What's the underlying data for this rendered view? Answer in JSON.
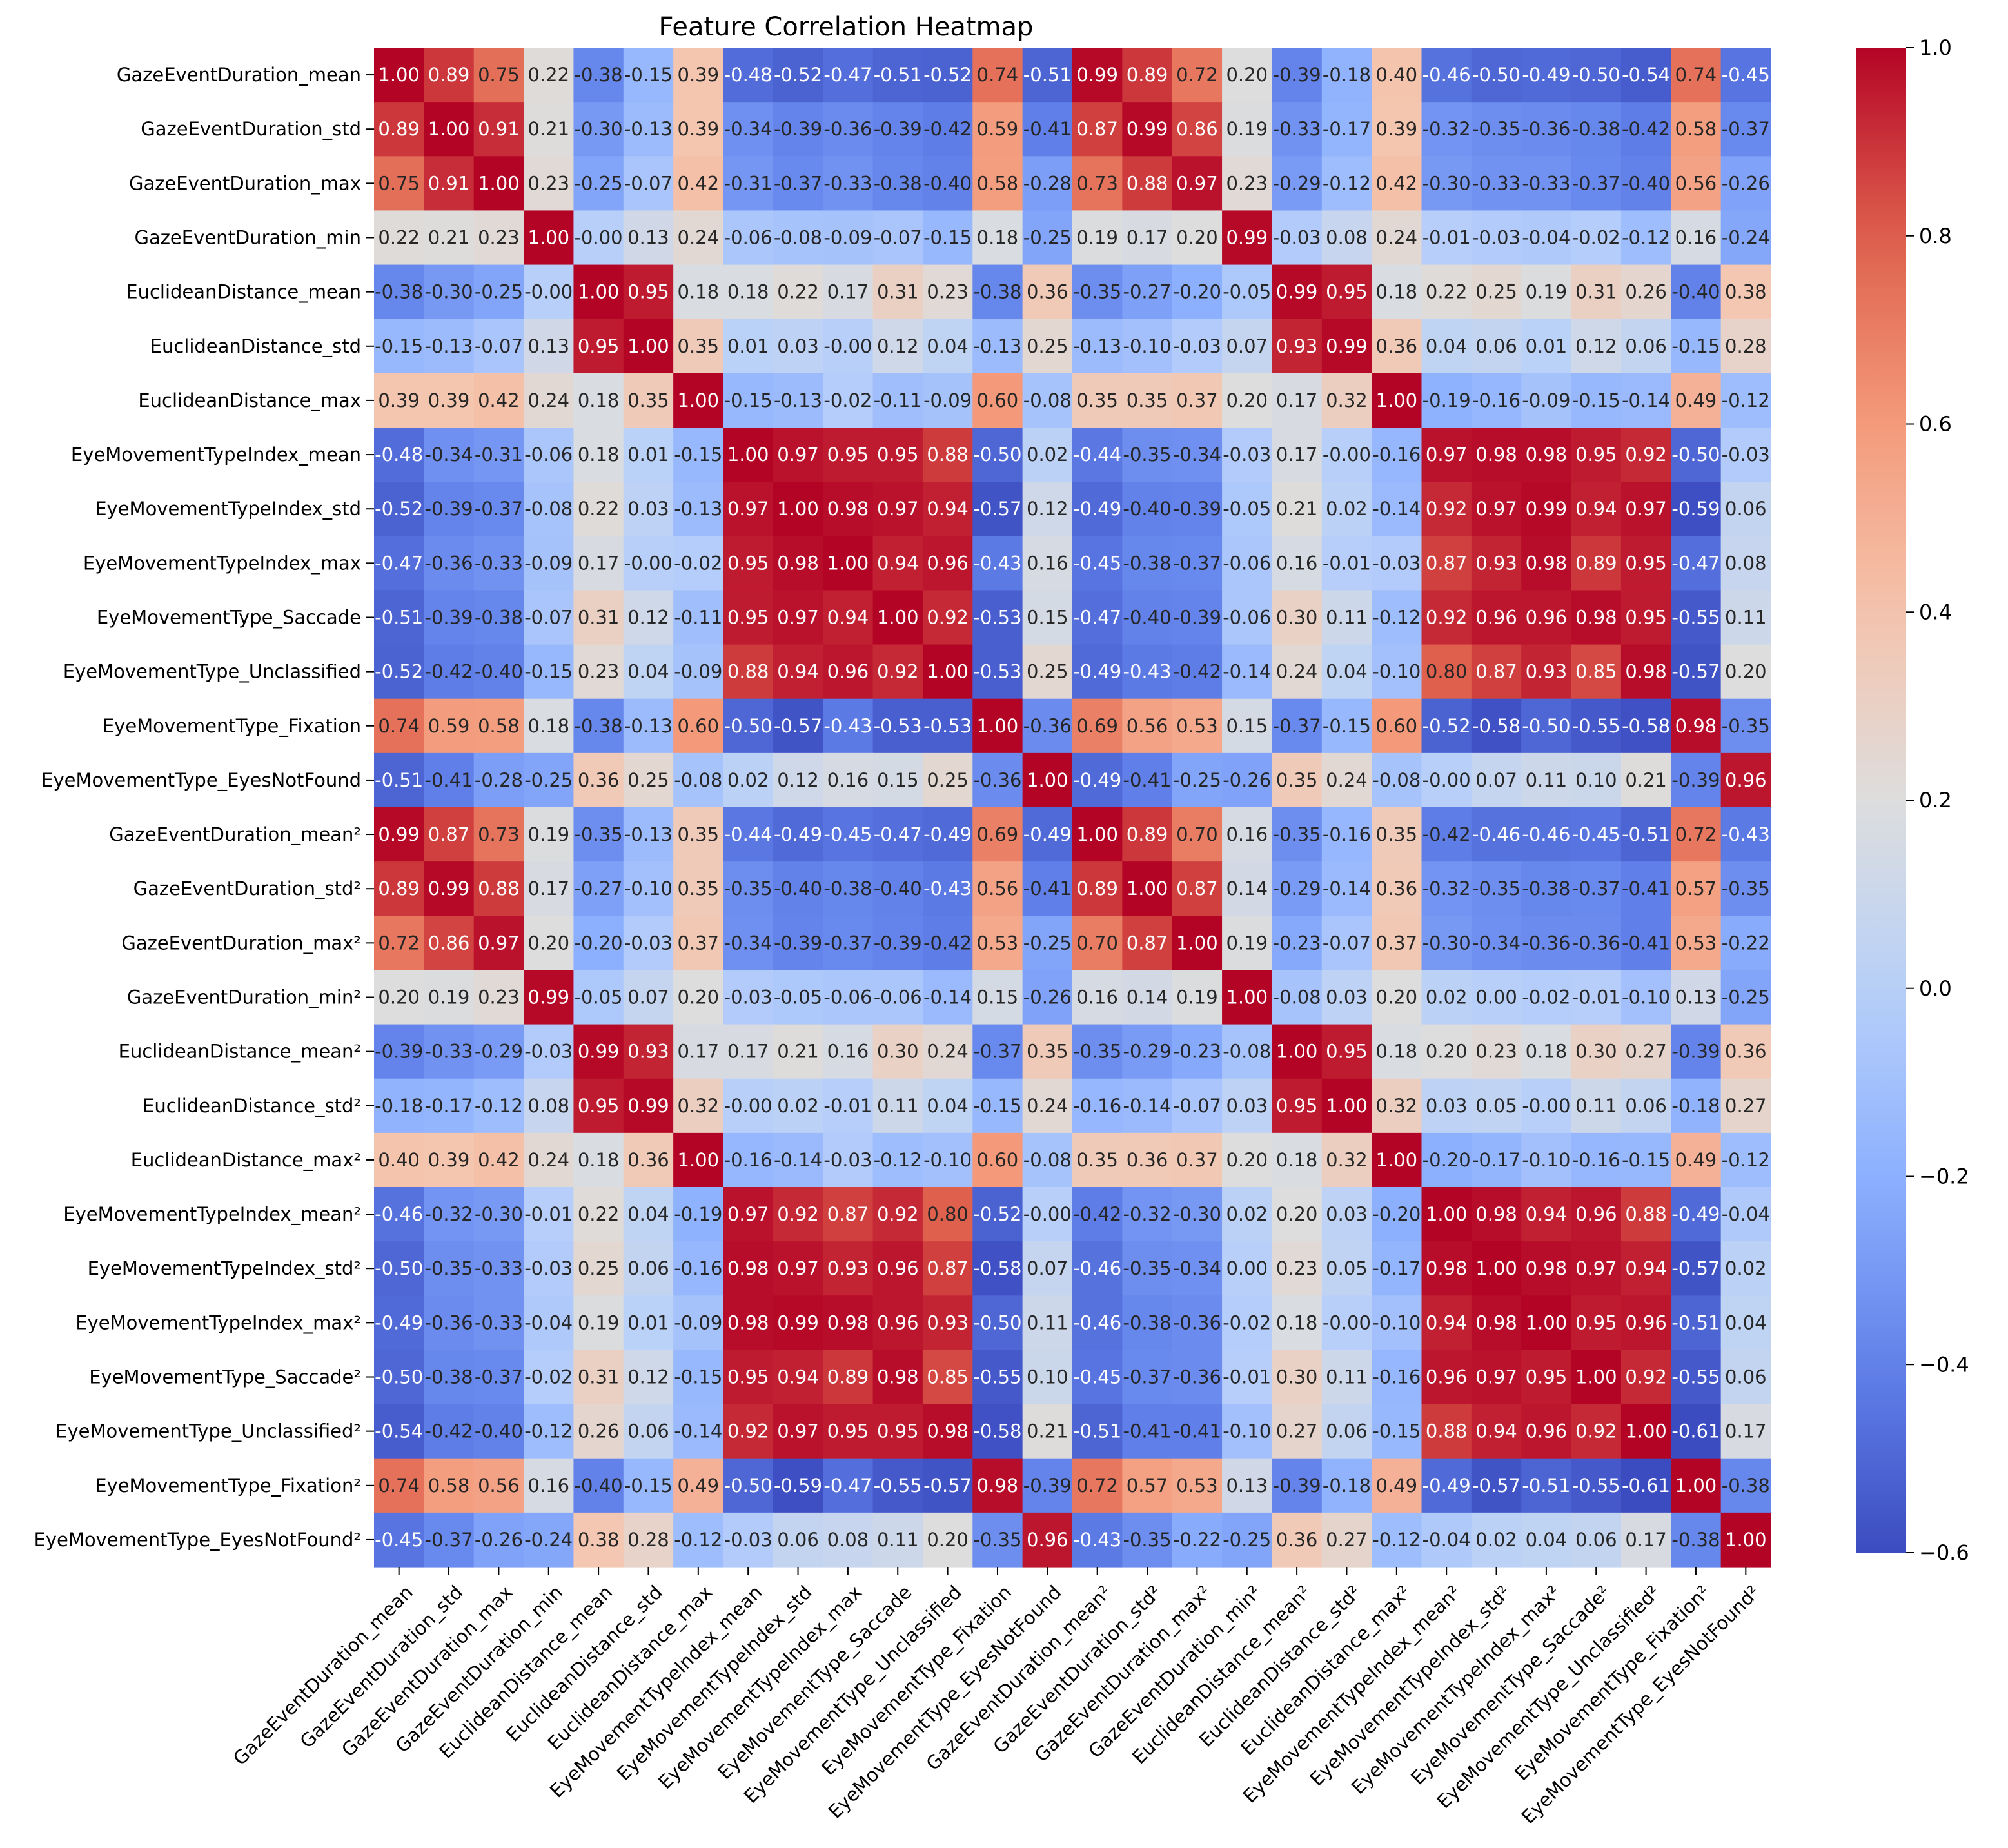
{
  "chart_data": {
    "type": "heatmap",
    "title": "Feature Correlation Heatmap",
    "labels": [
      "GazeEventDuration_mean",
      "GazeEventDuration_std",
      "GazeEventDuration_max",
      "GazeEventDuration_min",
      "EuclideanDistance_mean",
      "EuclideanDistance_std",
      "EuclideanDistance_max",
      "EyeMovementTypeIndex_mean",
      "EyeMovementTypeIndex_std",
      "EyeMovementTypeIndex_max",
      "EyeMovementType_Saccade",
      "EyeMovementType_Unclassified",
      "EyeMovementType_Fixation",
      "EyeMovementType_EyesNotFound",
      "GazeEventDuration_mean²",
      "GazeEventDuration_std²",
      "GazeEventDuration_max²",
      "GazeEventDuration_min²",
      "EuclideanDistance_mean²",
      "EuclideanDistance_std²",
      "EuclideanDistance_max²",
      "EyeMovementTypeIndex_mean²",
      "EyeMovementTypeIndex_std²",
      "EyeMovementTypeIndex_max²",
      "EyeMovementType_Saccade²",
      "EyeMovementType_Unclassified²",
      "EyeMovementType_Fixation²",
      "EyeMovementType_EyesNotFound²"
    ],
    "matrix": [
      [
        1.0,
        0.89,
        0.75,
        0.22,
        -0.38,
        -0.15,
        0.39,
        -0.48,
        -0.52,
        -0.47,
        -0.51,
        -0.52,
        0.74,
        -0.51,
        0.99,
        0.89,
        0.72,
        0.2,
        -0.39,
        -0.18,
        0.4,
        -0.46,
        -0.5,
        -0.49,
        -0.5,
        -0.54,
        0.74,
        -0.45
      ],
      [
        0.89,
        1.0,
        0.91,
        0.21,
        -0.3,
        -0.13,
        0.39,
        -0.34,
        -0.39,
        -0.36,
        -0.39,
        -0.42,
        0.59,
        -0.41,
        0.87,
        0.99,
        0.86,
        0.19,
        -0.33,
        -0.17,
        0.39,
        -0.32,
        -0.35,
        -0.36,
        -0.38,
        -0.42,
        0.58,
        -0.37
      ],
      [
        0.75,
        0.91,
        1.0,
        0.23,
        -0.25,
        -0.07,
        0.42,
        -0.31,
        -0.37,
        -0.33,
        -0.38,
        -0.4,
        0.58,
        -0.28,
        0.73,
        0.88,
        0.97,
        0.23,
        -0.29,
        -0.12,
        0.42,
        -0.3,
        -0.33,
        -0.33,
        -0.37,
        -0.4,
        0.56,
        -0.26
      ],
      [
        0.22,
        0.21,
        0.23,
        1.0,
        -0.0,
        0.13,
        0.24,
        -0.06,
        -0.08,
        -0.09,
        -0.07,
        -0.15,
        0.18,
        -0.25,
        0.19,
        0.17,
        0.2,
        0.99,
        -0.03,
        0.08,
        0.24,
        -0.01,
        -0.03,
        -0.04,
        -0.02,
        -0.12,
        0.16,
        -0.24
      ],
      [
        -0.38,
        -0.3,
        -0.25,
        -0.0,
        1.0,
        0.95,
        0.18,
        0.18,
        0.22,
        0.17,
        0.31,
        0.23,
        -0.38,
        0.36,
        -0.35,
        -0.27,
        -0.2,
        -0.05,
        0.99,
        0.95,
        0.18,
        0.22,
        0.25,
        0.19,
        0.31,
        0.26,
        -0.4,
        0.38
      ],
      [
        -0.15,
        -0.13,
        -0.07,
        0.13,
        0.95,
        1.0,
        0.35,
        0.01,
        0.03,
        -0.0,
        0.12,
        0.04,
        -0.13,
        0.25,
        -0.13,
        -0.1,
        -0.03,
        0.07,
        0.93,
        0.99,
        0.36,
        0.04,
        0.06,
        0.01,
        0.12,
        0.06,
        -0.15,
        0.28
      ],
      [
        0.39,
        0.39,
        0.42,
        0.24,
        0.18,
        0.35,
        1.0,
        -0.15,
        -0.13,
        -0.02,
        -0.11,
        -0.09,
        0.6,
        -0.08,
        0.35,
        0.35,
        0.37,
        0.2,
        0.17,
        0.32,
        1.0,
        -0.19,
        -0.16,
        -0.09,
        -0.15,
        -0.14,
        0.49,
        -0.12
      ],
      [
        -0.48,
        -0.34,
        -0.31,
        -0.06,
        0.18,
        0.01,
        -0.15,
        1.0,
        0.97,
        0.95,
        0.95,
        0.88,
        -0.5,
        0.02,
        -0.44,
        -0.35,
        -0.34,
        -0.03,
        0.17,
        -0.0,
        -0.16,
        0.97,
        0.98,
        0.98,
        0.95,
        0.92,
        -0.5,
        -0.03
      ],
      [
        -0.52,
        -0.39,
        -0.37,
        -0.08,
        0.22,
        0.03,
        -0.13,
        0.97,
        1.0,
        0.98,
        0.97,
        0.94,
        -0.57,
        0.12,
        -0.49,
        -0.4,
        -0.39,
        -0.05,
        0.21,
        0.02,
        -0.14,
        0.92,
        0.97,
        0.99,
        0.94,
        0.97,
        -0.59,
        0.06
      ],
      [
        -0.47,
        -0.36,
        -0.33,
        -0.09,
        0.17,
        -0.0,
        -0.02,
        0.95,
        0.98,
        1.0,
        0.94,
        0.96,
        -0.43,
        0.16,
        -0.45,
        -0.38,
        -0.37,
        -0.06,
        0.16,
        -0.01,
        -0.03,
        0.87,
        0.93,
        0.98,
        0.89,
        0.95,
        -0.47,
        0.08
      ],
      [
        -0.51,
        -0.39,
        -0.38,
        -0.07,
        0.31,
        0.12,
        -0.11,
        0.95,
        0.97,
        0.94,
        1.0,
        0.92,
        -0.53,
        0.15,
        -0.47,
        -0.4,
        -0.39,
        -0.06,
        0.3,
        0.11,
        -0.12,
        0.92,
        0.96,
        0.96,
        0.98,
        0.95,
        -0.55,
        0.11
      ],
      [
        -0.52,
        -0.42,
        -0.4,
        -0.15,
        0.23,
        0.04,
        -0.09,
        0.88,
        0.94,
        0.96,
        0.92,
        1.0,
        -0.53,
        0.25,
        -0.49,
        -0.43,
        -0.42,
        -0.14,
        0.24,
        0.04,
        -0.1,
        0.8,
        0.87,
        0.93,
        0.85,
        0.98,
        -0.57,
        0.2
      ],
      [
        0.74,
        0.59,
        0.58,
        0.18,
        -0.38,
        -0.13,
        0.6,
        -0.5,
        -0.57,
        -0.43,
        -0.53,
        -0.53,
        1.0,
        -0.36,
        0.69,
        0.56,
        0.53,
        0.15,
        -0.37,
        -0.15,
        0.6,
        -0.52,
        -0.58,
        -0.5,
        -0.55,
        -0.58,
        0.98,
        -0.35
      ],
      [
        -0.51,
        -0.41,
        -0.28,
        -0.25,
        0.36,
        0.25,
        -0.08,
        0.02,
        0.12,
        0.16,
        0.15,
        0.25,
        -0.36,
        1.0,
        -0.49,
        -0.41,
        -0.25,
        -0.26,
        0.35,
        0.24,
        -0.08,
        -0.0,
        0.07,
        0.11,
        0.1,
        0.21,
        -0.39,
        0.96
      ],
      [
        0.99,
        0.87,
        0.73,
        0.19,
        -0.35,
        -0.13,
        0.35,
        -0.44,
        -0.49,
        -0.45,
        -0.47,
        -0.49,
        0.69,
        -0.49,
        1.0,
        0.89,
        0.7,
        0.16,
        -0.35,
        -0.16,
        0.35,
        -0.42,
        -0.46,
        -0.46,
        -0.45,
        -0.51,
        0.72,
        -0.43
      ],
      [
        0.89,
        0.99,
        0.88,
        0.17,
        -0.27,
        -0.1,
        0.35,
        -0.35,
        -0.4,
        -0.38,
        -0.4,
        -0.43,
        0.56,
        -0.41,
        0.89,
        1.0,
        0.87,
        0.14,
        -0.29,
        -0.14,
        0.36,
        -0.32,
        -0.35,
        -0.38,
        -0.37,
        -0.41,
        0.57,
        -0.35
      ],
      [
        0.72,
        0.86,
        0.97,
        0.2,
        -0.2,
        -0.03,
        0.37,
        -0.34,
        -0.39,
        -0.37,
        -0.39,
        -0.42,
        0.53,
        -0.25,
        0.7,
        0.87,
        1.0,
        0.19,
        -0.23,
        -0.07,
        0.37,
        -0.3,
        -0.34,
        -0.36,
        -0.36,
        -0.41,
        0.53,
        -0.22
      ],
      [
        0.2,
        0.19,
        0.23,
        0.99,
        -0.05,
        0.07,
        0.2,
        -0.03,
        -0.05,
        -0.06,
        -0.06,
        -0.14,
        0.15,
        -0.26,
        0.16,
        0.14,
        0.19,
        1.0,
        -0.08,
        0.03,
        0.2,
        0.02,
        0.0,
        -0.02,
        -0.01,
        -0.1,
        0.13,
        -0.25
      ],
      [
        -0.39,
        -0.33,
        -0.29,
        -0.03,
        0.99,
        0.93,
        0.17,
        0.17,
        0.21,
        0.16,
        0.3,
        0.24,
        -0.37,
        0.35,
        -0.35,
        -0.29,
        -0.23,
        -0.08,
        1.0,
        0.95,
        0.18,
        0.2,
        0.23,
        0.18,
        0.3,
        0.27,
        -0.39,
        0.36
      ],
      [
        -0.18,
        -0.17,
        -0.12,
        0.08,
        0.95,
        0.99,
        0.32,
        -0.0,
        0.02,
        -0.01,
        0.11,
        0.04,
        -0.15,
        0.24,
        -0.16,
        -0.14,
        -0.07,
        0.03,
        0.95,
        1.0,
        0.32,
        0.03,
        0.05,
        -0.0,
        0.11,
        0.06,
        -0.18,
        0.27
      ],
      [
        0.4,
        0.39,
        0.42,
        0.24,
        0.18,
        0.36,
        1.0,
        -0.16,
        -0.14,
        -0.03,
        -0.12,
        -0.1,
        0.6,
        -0.08,
        0.35,
        0.36,
        0.37,
        0.2,
        0.18,
        0.32,
        1.0,
        -0.2,
        -0.17,
        -0.1,
        -0.16,
        -0.15,
        0.49,
        -0.12
      ],
      [
        -0.46,
        -0.32,
        -0.3,
        -0.01,
        0.22,
        0.04,
        -0.19,
        0.97,
        0.92,
        0.87,
        0.92,
        0.8,
        -0.52,
        -0.0,
        -0.42,
        -0.32,
        -0.3,
        0.02,
        0.2,
        0.03,
        -0.2,
        1.0,
        0.98,
        0.94,
        0.96,
        0.88,
        -0.49,
        -0.04
      ],
      [
        -0.5,
        -0.35,
        -0.33,
        -0.03,
        0.25,
        0.06,
        -0.16,
        0.98,
        0.97,
        0.93,
        0.96,
        0.87,
        -0.58,
        0.07,
        -0.46,
        -0.35,
        -0.34,
        0.0,
        0.23,
        0.05,
        -0.17,
        0.98,
        1.0,
        0.98,
        0.97,
        0.94,
        -0.57,
        0.02
      ],
      [
        -0.49,
        -0.36,
        -0.33,
        -0.04,
        0.19,
        0.01,
        -0.09,
        0.98,
        0.99,
        0.98,
        0.96,
        0.93,
        -0.5,
        0.11,
        -0.46,
        -0.38,
        -0.36,
        -0.02,
        0.18,
        -0.0,
        -0.1,
        0.94,
        0.98,
        1.0,
        0.95,
        0.96,
        -0.51,
        0.04
      ],
      [
        -0.5,
        -0.38,
        -0.37,
        -0.02,
        0.31,
        0.12,
        -0.15,
        0.95,
        0.94,
        0.89,
        0.98,
        0.85,
        -0.55,
        0.1,
        -0.45,
        -0.37,
        -0.36,
        -0.01,
        0.3,
        0.11,
        -0.16,
        0.96,
        0.97,
        0.95,
        1.0,
        0.92,
        -0.55,
        0.06
      ],
      [
        -0.54,
        -0.42,
        -0.4,
        -0.12,
        0.26,
        0.06,
        -0.14,
        0.92,
        0.97,
        0.95,
        0.95,
        0.98,
        -0.58,
        0.21,
        -0.51,
        -0.41,
        -0.41,
        -0.1,
        0.27,
        0.06,
        -0.15,
        0.88,
        0.94,
        0.96,
        0.92,
        1.0,
        -0.61,
        0.17
      ],
      [
        0.74,
        0.58,
        0.56,
        0.16,
        -0.4,
        -0.15,
        0.49,
        -0.5,
        -0.59,
        -0.47,
        -0.55,
        -0.57,
        0.98,
        -0.39,
        0.72,
        0.57,
        0.53,
        0.13,
        -0.39,
        -0.18,
        0.49,
        -0.49,
        -0.57,
        -0.51,
        -0.55,
        -0.61,
        1.0,
        -0.38
      ],
      [
        -0.45,
        -0.37,
        -0.26,
        -0.24,
        0.38,
        0.28,
        -0.12,
        -0.03,
        0.06,
        0.08,
        0.11,
        0.2,
        -0.35,
        0.96,
        -0.43,
        -0.35,
        -0.22,
        -0.25,
        0.36,
        0.27,
        -0.12,
        -0.04,
        0.02,
        0.04,
        0.06,
        0.17,
        -0.38,
        1.0
      ]
    ],
    "colorbar": {
      "range": [
        -0.6,
        1.0
      ],
      "ticks": [
        1.0,
        0.8,
        0.6,
        0.4,
        0.2,
        0.0,
        -0.2,
        -0.4,
        -0.6
      ],
      "tick_labels": [
        "1.0",
        "0.8",
        "0.6",
        "0.4",
        "0.2",
        "0.0",
        "−0.2",
        "−0.4",
        "−0.6"
      ]
    },
    "colormap": "coolwarm"
  }
}
